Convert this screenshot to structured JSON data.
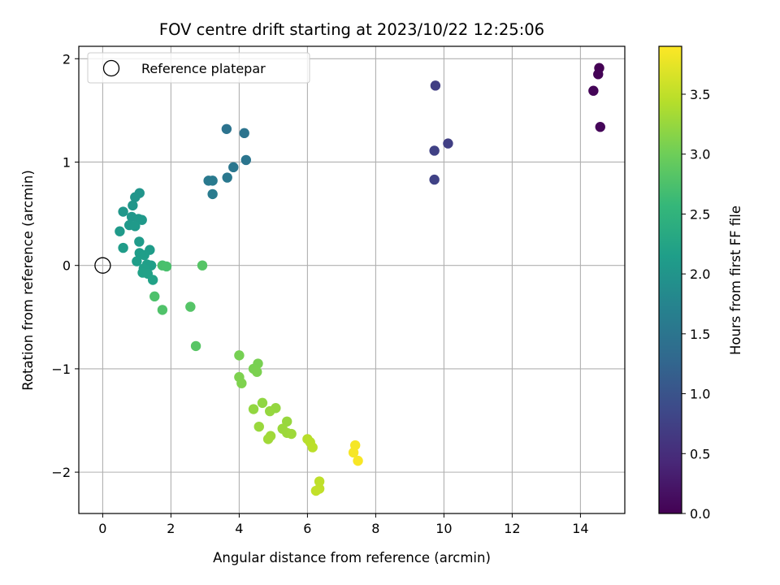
{
  "chart_data": {
    "type": "scatter",
    "title": "FOV centre drift starting at 2023/10/22 12:25:06",
    "xlabel": "Angular distance from reference (arcmin)",
    "ylabel": "Rotation from reference (arcmin)",
    "xlim": [
      -0.7,
      15.3
    ],
    "ylim": [
      -2.4,
      2.12
    ],
    "xticks": [
      0,
      2,
      4,
      6,
      8,
      10,
      12,
      14
    ],
    "yticks": [
      -2,
      -1,
      0,
      1,
      2
    ],
    "grid": true,
    "legend": {
      "position": "top-left",
      "entries": [
        "Reference platepar"
      ]
    },
    "reference_point": {
      "x": 0,
      "y": 0,
      "label": "Reference platepar"
    },
    "colorbar": {
      "label": "Hours from first FF file",
      "range": [
        0,
        3.9
      ],
      "ticks": [
        "0.0",
        "0.5",
        "1.0",
        "1.5",
        "2.0",
        "2.5",
        "3.0",
        "3.5"
      ],
      "colormap": "viridis"
    },
    "points": [
      {
        "x": 14.55,
        "y": 1.91,
        "c": 0.0
      },
      {
        "x": 14.52,
        "y": 1.85,
        "c": 0.02
      },
      {
        "x": 14.38,
        "y": 1.69,
        "c": 0.04
      },
      {
        "x": 14.58,
        "y": 1.34,
        "c": 0.06
      },
      {
        "x": 9.75,
        "y": 1.74,
        "c": 0.72
      },
      {
        "x": 10.12,
        "y": 1.18,
        "c": 0.74
      },
      {
        "x": 9.72,
        "y": 1.11,
        "c": 0.76
      },
      {
        "x": 9.72,
        "y": 0.83,
        "c": 0.78
      },
      {
        "x": 3.63,
        "y": 1.32,
        "c": 1.48
      },
      {
        "x": 4.15,
        "y": 1.28,
        "c": 1.5
      },
      {
        "x": 4.2,
        "y": 1.02,
        "c": 1.52
      },
      {
        "x": 3.83,
        "y": 0.95,
        "c": 1.54
      },
      {
        "x": 3.65,
        "y": 0.85,
        "c": 1.56
      },
      {
        "x": 3.1,
        "y": 0.82,
        "c": 1.58
      },
      {
        "x": 3.22,
        "y": 0.82,
        "c": 1.6
      },
      {
        "x": 3.22,
        "y": 0.69,
        "c": 1.62
      },
      {
        "x": 1.08,
        "y": 0.7,
        "c": 2.02
      },
      {
        "x": 0.95,
        "y": 0.66,
        "c": 2.03
      },
      {
        "x": 0.88,
        "y": 0.58,
        "c": 2.04
      },
      {
        "x": 0.6,
        "y": 0.52,
        "c": 2.05
      },
      {
        "x": 0.85,
        "y": 0.47,
        "c": 2.06
      },
      {
        "x": 1.05,
        "y": 0.45,
        "c": 2.07
      },
      {
        "x": 1.15,
        "y": 0.44,
        "c": 2.08
      },
      {
        "x": 0.78,
        "y": 0.39,
        "c": 2.09
      },
      {
        "x": 0.95,
        "y": 0.38,
        "c": 2.1
      },
      {
        "x": 0.5,
        "y": 0.33,
        "c": 2.11
      },
      {
        "x": 1.07,
        "y": 0.23,
        "c": 2.12
      },
      {
        "x": 0.6,
        "y": 0.17,
        "c": 2.13
      },
      {
        "x": 1.38,
        "y": 0.15,
        "c": 2.14
      },
      {
        "x": 1.08,
        "y": 0.12,
        "c": 2.15
      },
      {
        "x": 1.22,
        "y": 0.1,
        "c": 2.16
      },
      {
        "x": 1.0,
        "y": 0.04,
        "c": 2.17
      },
      {
        "x": 1.3,
        "y": 0.01,
        "c": 2.18
      },
      {
        "x": 1.42,
        "y": 0.0,
        "c": 2.19
      },
      {
        "x": 1.2,
        "y": -0.03,
        "c": 2.2
      },
      {
        "x": 1.17,
        "y": -0.07,
        "c": 2.21
      },
      {
        "x": 1.32,
        "y": -0.08,
        "c": 2.22
      },
      {
        "x": 1.47,
        "y": -0.14,
        "c": 2.23
      },
      {
        "x": 1.75,
        "y": 0.0,
        "c": 2.75
      },
      {
        "x": 1.87,
        "y": -0.01,
        "c": 2.76
      },
      {
        "x": 2.92,
        "y": 0.0,
        "c": 2.85
      },
      {
        "x": 1.52,
        "y": -0.3,
        "c": 2.78
      },
      {
        "x": 1.75,
        "y": -0.43,
        "c": 2.8
      },
      {
        "x": 2.57,
        "y": -0.4,
        "c": 2.84
      },
      {
        "x": 2.73,
        "y": -0.78,
        "c": 2.86
      },
      {
        "x": 4.0,
        "y": -0.87,
        "c": 3.08
      },
      {
        "x": 4.55,
        "y": -0.95,
        "c": 3.09
      },
      {
        "x": 4.42,
        "y": -1.0,
        "c": 3.1
      },
      {
        "x": 4.52,
        "y": -1.03,
        "c": 3.11
      },
      {
        "x": 4.0,
        "y": -1.08,
        "c": 3.12
      },
      {
        "x": 4.07,
        "y": -1.14,
        "c": 3.13
      },
      {
        "x": 4.68,
        "y": -1.33,
        "c": 3.24
      },
      {
        "x": 4.42,
        "y": -1.39,
        "c": 3.25
      },
      {
        "x": 5.07,
        "y": -1.38,
        "c": 3.26
      },
      {
        "x": 4.9,
        "y": -1.41,
        "c": 3.27
      },
      {
        "x": 5.4,
        "y": -1.51,
        "c": 3.28
      },
      {
        "x": 4.58,
        "y": -1.56,
        "c": 3.29
      },
      {
        "x": 5.27,
        "y": -1.58,
        "c": 3.3
      },
      {
        "x": 5.4,
        "y": -1.62,
        "c": 3.31
      },
      {
        "x": 5.53,
        "y": -1.63,
        "c": 3.32
      },
      {
        "x": 4.92,
        "y": -1.65,
        "c": 3.33
      },
      {
        "x": 4.85,
        "y": -1.68,
        "c": 3.34
      },
      {
        "x": 6.0,
        "y": -1.68,
        "c": 3.48
      },
      {
        "x": 6.08,
        "y": -1.71,
        "c": 3.49
      },
      {
        "x": 6.15,
        "y": -1.76,
        "c": 3.5
      },
      {
        "x": 6.35,
        "y": -2.09,
        "c": 3.52
      },
      {
        "x": 6.35,
        "y": -2.16,
        "c": 3.53
      },
      {
        "x": 6.25,
        "y": -2.18,
        "c": 3.54
      },
      {
        "x": 7.4,
        "y": -1.74,
        "c": 3.85
      },
      {
        "x": 7.35,
        "y": -1.81,
        "c": 3.86
      },
      {
        "x": 7.48,
        "y": -1.89,
        "c": 3.87
      }
    ]
  }
}
